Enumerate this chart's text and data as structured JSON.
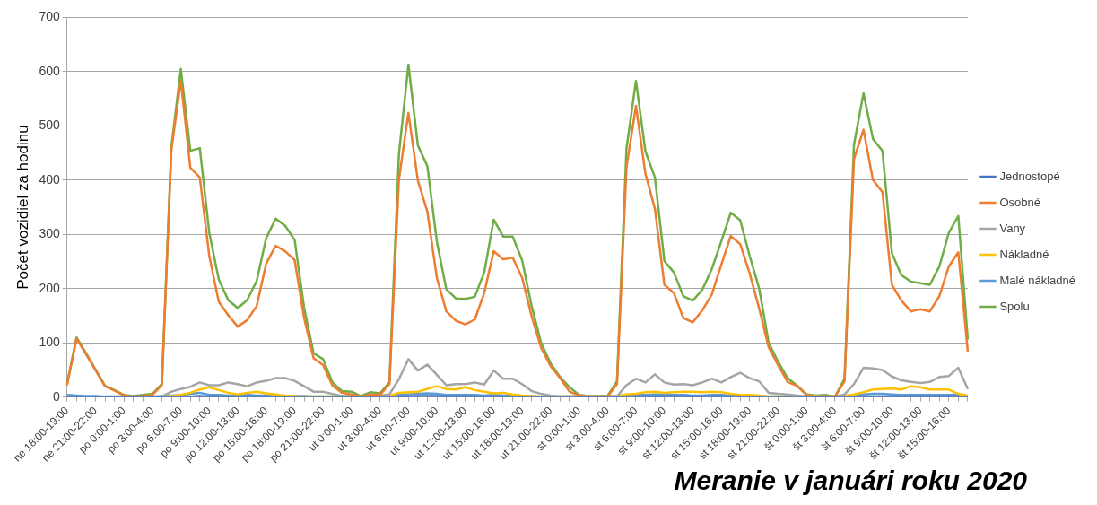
{
  "chart_data": {
    "type": "line",
    "ylabel": "Počet vozidiel za hodinu",
    "annotations": [
      "Meranie v januári roku 2020"
    ],
    "categories": [
      "ne 18:00-19:00",
      null,
      null,
      "ne 21:00-22:00",
      null,
      null,
      "po 0:00-1:00",
      null,
      null,
      "po 3:00-4:00",
      null,
      null,
      "po 6:00-7:00",
      null,
      null,
      "po 9:00-10:00",
      null,
      null,
      "po 12:00-13:00",
      null,
      null,
      "po 15:00-16:00",
      null,
      null,
      "po 18:00-19:00",
      null,
      null,
      "po 21:00-22:00",
      null,
      null,
      "ut 0:00-1:00",
      null,
      null,
      "ut 3:00-4:00",
      null,
      null,
      "ut 6:00-7:00",
      null,
      null,
      "ut 9:00-10:00",
      null,
      null,
      "ut 12:00-13:00",
      null,
      null,
      "ut 15:00-16:00",
      null,
      null,
      "ut 18:00-19:00",
      null,
      null,
      "ut 21:00-22:00",
      null,
      null,
      "st 0:00-1:00",
      null,
      null,
      "st 3:00-4:00",
      null,
      null,
      "st 6:00-7:00",
      null,
      null,
      "st 9:00-10:00",
      null,
      null,
      "st 12:00-13:00",
      null,
      null,
      "st 15:00-16:00",
      null,
      null,
      "st 18:00-19:00",
      null,
      null,
      "st 21:00-22:00",
      null,
      null,
      "št 0:00-1:00",
      null,
      null,
      "št 3:00-4:00",
      null,
      null,
      "št 6:00-7:00",
      null,
      null,
      "št 9:00-10:00",
      null,
      null,
      "št 12:00-13:00",
      null,
      null,
      "št 15:00-16:00",
      null,
      null
    ],
    "series": [
      {
        "name": "Jednostopé",
        "color": "#4472c4",
        "values": [
          1,
          0,
          0,
          0,
          0,
          0,
          0,
          0,
          0,
          0,
          0,
          0,
          1,
          1,
          2,
          1,
          1,
          1,
          1,
          1,
          1,
          1,
          0,
          0,
          0,
          0,
          0,
          0,
          0,
          0,
          0,
          0,
          0,
          0,
          0,
          1,
          1,
          2,
          2,
          2,
          1,
          1,
          1,
          1,
          1,
          1,
          1,
          0,
          0,
          0,
          0,
          0,
          0,
          0,
          0,
          0,
          0,
          0,
          0,
          1,
          1,
          1,
          1,
          1,
          1,
          1,
          1,
          1,
          1,
          1,
          1,
          1,
          0,
          0,
          0,
          0,
          0,
          0,
          0,
          0,
          0,
          0,
          0,
          0,
          1,
          1,
          1,
          1,
          1,
          1,
          1,
          1,
          1,
          1,
          1,
          0
        ]
      },
      {
        "name": "Osobné",
        "color": "#ed7d31",
        "values": [
          22,
          108,
          79,
          50,
          20,
          12,
          3,
          1,
          2,
          4,
          22,
          455,
          583,
          423,
          405,
          260,
          176,
          151,
          130,
          142,
          168,
          246,
          279,
          269,
          253,
          146,
          72,
          59,
          21,
          8,
          5,
          1,
          5,
          4,
          24,
          401,
          524,
          399,
          342,
          220,
          158,
          141,
          134,
          143,
          192,
          269,
          254,
          257,
          220,
          149,
          91,
          57,
          35,
          10,
          3,
          1,
          1,
          1,
          24,
          423,
          537,
          412,
          347,
          207,
          192,
          146,
          138,
          160,
          189,
          244,
          297,
          282,
          228,
          163,
          92,
          59,
          28,
          21,
          4,
          1,
          1,
          1,
          29,
          439,
          493,
          400,
          378,
          207,
          178,
          158,
          162,
          158,
          186,
          241,
          267,
          84
        ]
      },
      {
        "name": "Vany",
        "color": "#a5a5a5",
        "values": [
          0,
          0,
          0,
          0,
          0,
          0,
          0,
          0,
          0,
          0,
          1,
          10,
          15,
          19,
          27,
          22,
          22,
          27,
          24,
          20,
          27,
          30,
          35,
          35,
          30,
          20,
          10,
          10,
          6,
          2,
          2,
          1,
          2,
          3,
          5,
          33,
          70,
          49,
          60,
          41,
          22,
          24,
          24,
          27,
          23,
          49,
          34,
          34,
          24,
          11,
          6,
          3,
          1,
          1,
          1,
          1,
          1,
          1,
          1,
          22,
          34,
          27,
          42,
          27,
          23,
          24,
          22,
          27,
          34,
          27,
          37,
          45,
          35,
          29,
          8,
          6,
          5,
          3,
          1,
          1,
          1,
          1,
          5,
          24,
          54,
          53,
          50,
          38,
          31,
          28,
          26,
          28,
          37,
          39,
          54,
          15
        ]
      },
      {
        "name": "Nákladné",
        "color": "#ffc000",
        "values": [
          null,
          null,
          null,
          null,
          null,
          null,
          null,
          null,
          null,
          null,
          1,
          2,
          4,
          8,
          14,
          18,
          13,
          8,
          5,
          8,
          10,
          7,
          5,
          3,
          2,
          1,
          1,
          1,
          1,
          1,
          1,
          1,
          1,
          1,
          2,
          8,
          9,
          10,
          15,
          20,
          15,
          14,
          18,
          13,
          10,
          7,
          8,
          5,
          3,
          2,
          1,
          1,
          1,
          1,
          1,
          1,
          1,
          1,
          2,
          5,
          6,
          9,
          10,
          8,
          9,
          10,
          10,
          9,
          10,
          9,
          6,
          4,
          4,
          3,
          1,
          1,
          1,
          1,
          1,
          1,
          1,
          1,
          2,
          5,
          9,
          14,
          15,
          16,
          14,
          20,
          18,
          14,
          14,
          14,
          6,
          3
        ]
      },
      {
        "name": "Malé nákladné",
        "color": "#5b9bd5",
        "values": [
          4,
          3,
          2,
          2,
          1,
          1,
          1,
          1,
          1,
          1,
          2,
          3,
          4,
          6,
          8,
          4,
          4,
          3,
          3,
          4,
          3,
          3,
          3,
          2,
          2,
          2,
          1,
          1,
          1,
          1,
          1,
          1,
          1,
          1,
          2,
          4,
          5,
          6,
          7,
          6,
          4,
          4,
          4,
          4,
          3,
          4,
          3,
          3,
          2,
          2,
          1,
          1,
          1,
          1,
          1,
          1,
          1,
          1,
          2,
          3,
          4,
          4,
          5,
          4,
          4,
          4,
          3,
          3,
          4,
          4,
          3,
          3,
          2,
          2,
          1,
          1,
          1,
          1,
          1,
          1,
          1,
          1,
          2,
          4,
          5,
          6,
          6,
          5,
          4,
          4,
          4,
          4,
          4,
          4,
          5,
          2
        ]
      },
      {
        "name": "Spolu",
        "color": "#70ad47",
        "values": [
          25,
          110,
          81,
          51,
          21,
          13,
          4,
          2,
          4,
          6,
          24,
          461,
          605,
          454,
          459,
          303,
          217,
          179,
          164,
          179,
          214,
          293,
          329,
          316,
          290,
          165,
          81,
          70,
          27,
          11,
          10,
          2,
          9,
          7,
          27,
          448,
          613,
          464,
          426,
          287,
          199,
          182,
          181,
          185,
          230,
          327,
          296,
          296,
          252,
          168,
          100,
          62,
          37,
          18,
          4,
          2,
          2,
          2,
          29,
          458,
          583,
          453,
          405,
          251,
          230,
          186,
          178,
          198,
          236,
          287,
          340,
          326,
          260,
          200,
          100,
          65,
          35,
          21,
          5,
          3,
          4,
          1,
          34,
          466,
          560,
          476,
          454,
          265,
          225,
          213,
          210,
          207,
          241,
          303,
          334,
          106
        ]
      }
    ],
    "ylim": [
      0,
      700
    ],
    "yticks": [
      0,
      100,
      200,
      300,
      400,
      500,
      600,
      700
    ],
    "grid": "y",
    "legend": "right",
    "marker": "none",
    "line_style": "solid"
  }
}
